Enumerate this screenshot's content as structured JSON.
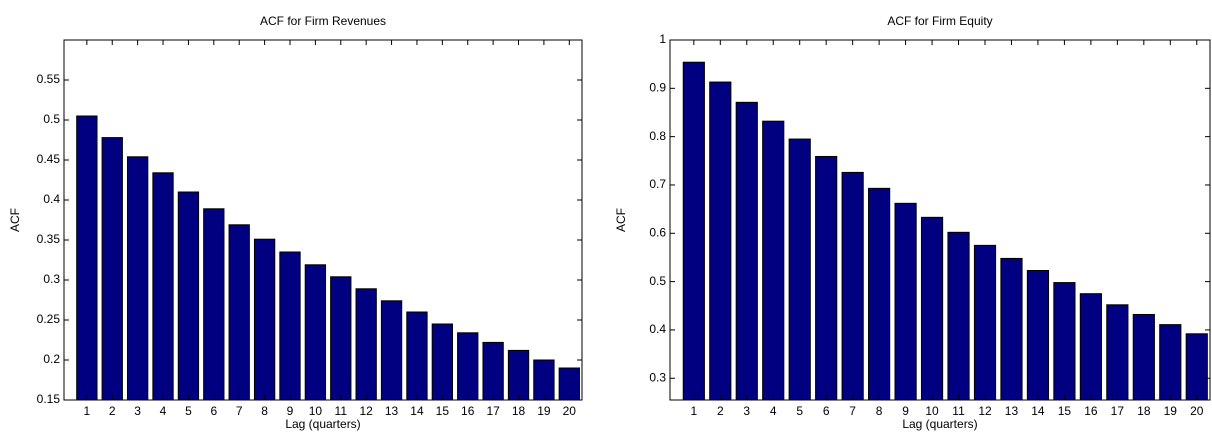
{
  "chart_data": [
    {
      "type": "bar",
      "title": "ACF for Firm Revenues",
      "x_label": "Lag (quarters)",
      "y_label": "ACF",
      "categories": [
        1,
        2,
        3,
        4,
        5,
        6,
        7,
        8,
        9,
        10,
        11,
        12,
        13,
        14,
        15,
        16,
        17,
        18,
        19,
        20
      ],
      "values": [
        0.505,
        0.478,
        0.454,
        0.434,
        0.41,
        0.389,
        0.369,
        0.351,
        0.335,
        0.319,
        0.304,
        0.289,
        0.274,
        0.26,
        0.245,
        0.234,
        0.222,
        0.212,
        0.2,
        0.19
      ],
      "color": "#000080",
      "ylim": [
        0.15,
        0.6
      ],
      "yticks": [
        0.15,
        0.2,
        0.25,
        0.3,
        0.35,
        0.4,
        0.45,
        0.5,
        0.55
      ]
    },
    {
      "type": "bar",
      "title": "ACF for Firm Equity",
      "x_label": "Lag (quarters)",
      "y_label": "ACF",
      "categories": [
        1,
        2,
        3,
        4,
        5,
        6,
        7,
        8,
        9,
        10,
        11,
        12,
        13,
        14,
        15,
        16,
        17,
        18,
        19,
        20
      ],
      "values": [
        0.954,
        0.913,
        0.871,
        0.832,
        0.795,
        0.759,
        0.726,
        0.693,
        0.662,
        0.633,
        0.602,
        0.575,
        0.548,
        0.523,
        0.498,
        0.475,
        0.452,
        0.432,
        0.411,
        0.392
      ],
      "color": "#000080",
      "ylim": [
        0.255,
        1
      ],
      "yticks": [
        0.3,
        0.4,
        0.5,
        0.6,
        0.7,
        0.8,
        0.9,
        1
      ]
    }
  ]
}
